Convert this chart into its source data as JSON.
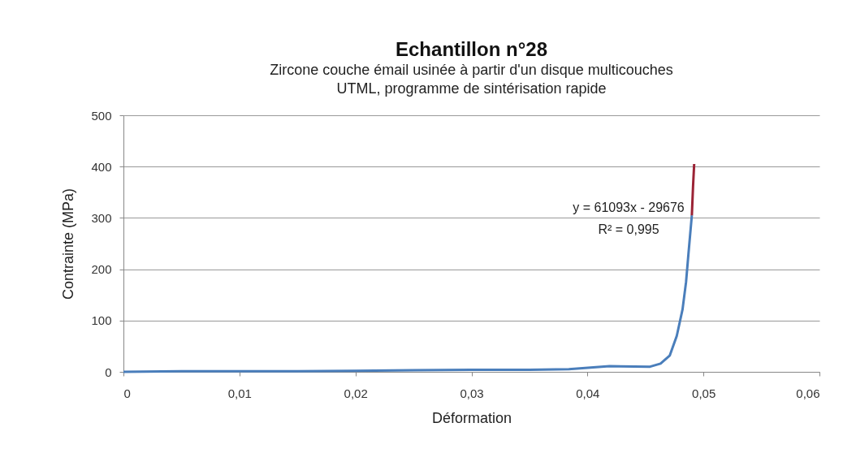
{
  "chart_data": {
    "type": "line",
    "title": "Echantillon n°28",
    "subtitle": "Zircone couche émail usinée à partir d'un disque multicouches\nUTML, programme de sintérisation rapide",
    "xlabel": "Déformation",
    "ylabel": "Contrainte  (MPa)",
    "series": [
      {
        "color": "#4a7ebb",
        "x": [
          0,
          0.005,
          0.01,
          0.015,
          0.02,
          0.025,
          0.03,
          0.035,
          0.0384,
          0.0419,
          0.0454,
          0.0463,
          0.0471,
          0.0477,
          0.0482,
          0.0485,
          0.0487,
          0.049
        ],
        "values": [
          0,
          1,
          1,
          1,
          2,
          3,
          4,
          4,
          5,
          11,
          10,
          16,
          32,
          70,
          122,
          175,
          228,
          305
        ]
      },
      {
        "color": "#9b2335",
        "x": [
          0.049,
          0.0491,
          0.0492
        ],
        "values": [
          305,
          360,
          405
        ]
      }
    ],
    "xlim": [
      0,
      0.06
    ],
    "xticks": [
      {
        "value": 0,
        "label": "0"
      },
      {
        "value": 0.01,
        "label": "0,01"
      },
      {
        "value": 0.02,
        "label": "0,02"
      },
      {
        "value": 0.03,
        "label": "0,03"
      },
      {
        "value": 0.04,
        "label": "0,04"
      },
      {
        "value": 0.05,
        "label": "0,05"
      },
      {
        "value": 0.06,
        "label": "0,06"
      }
    ],
    "ylim": [
      0,
      500
    ],
    "yticks": [
      0,
      100,
      200,
      300,
      400,
      500
    ],
    "grid": "y",
    "legend": false,
    "line_style": "solid",
    "marker": "none",
    "annotations": [
      "y = 61093x - 29676",
      "R² = 0,995"
    ]
  }
}
